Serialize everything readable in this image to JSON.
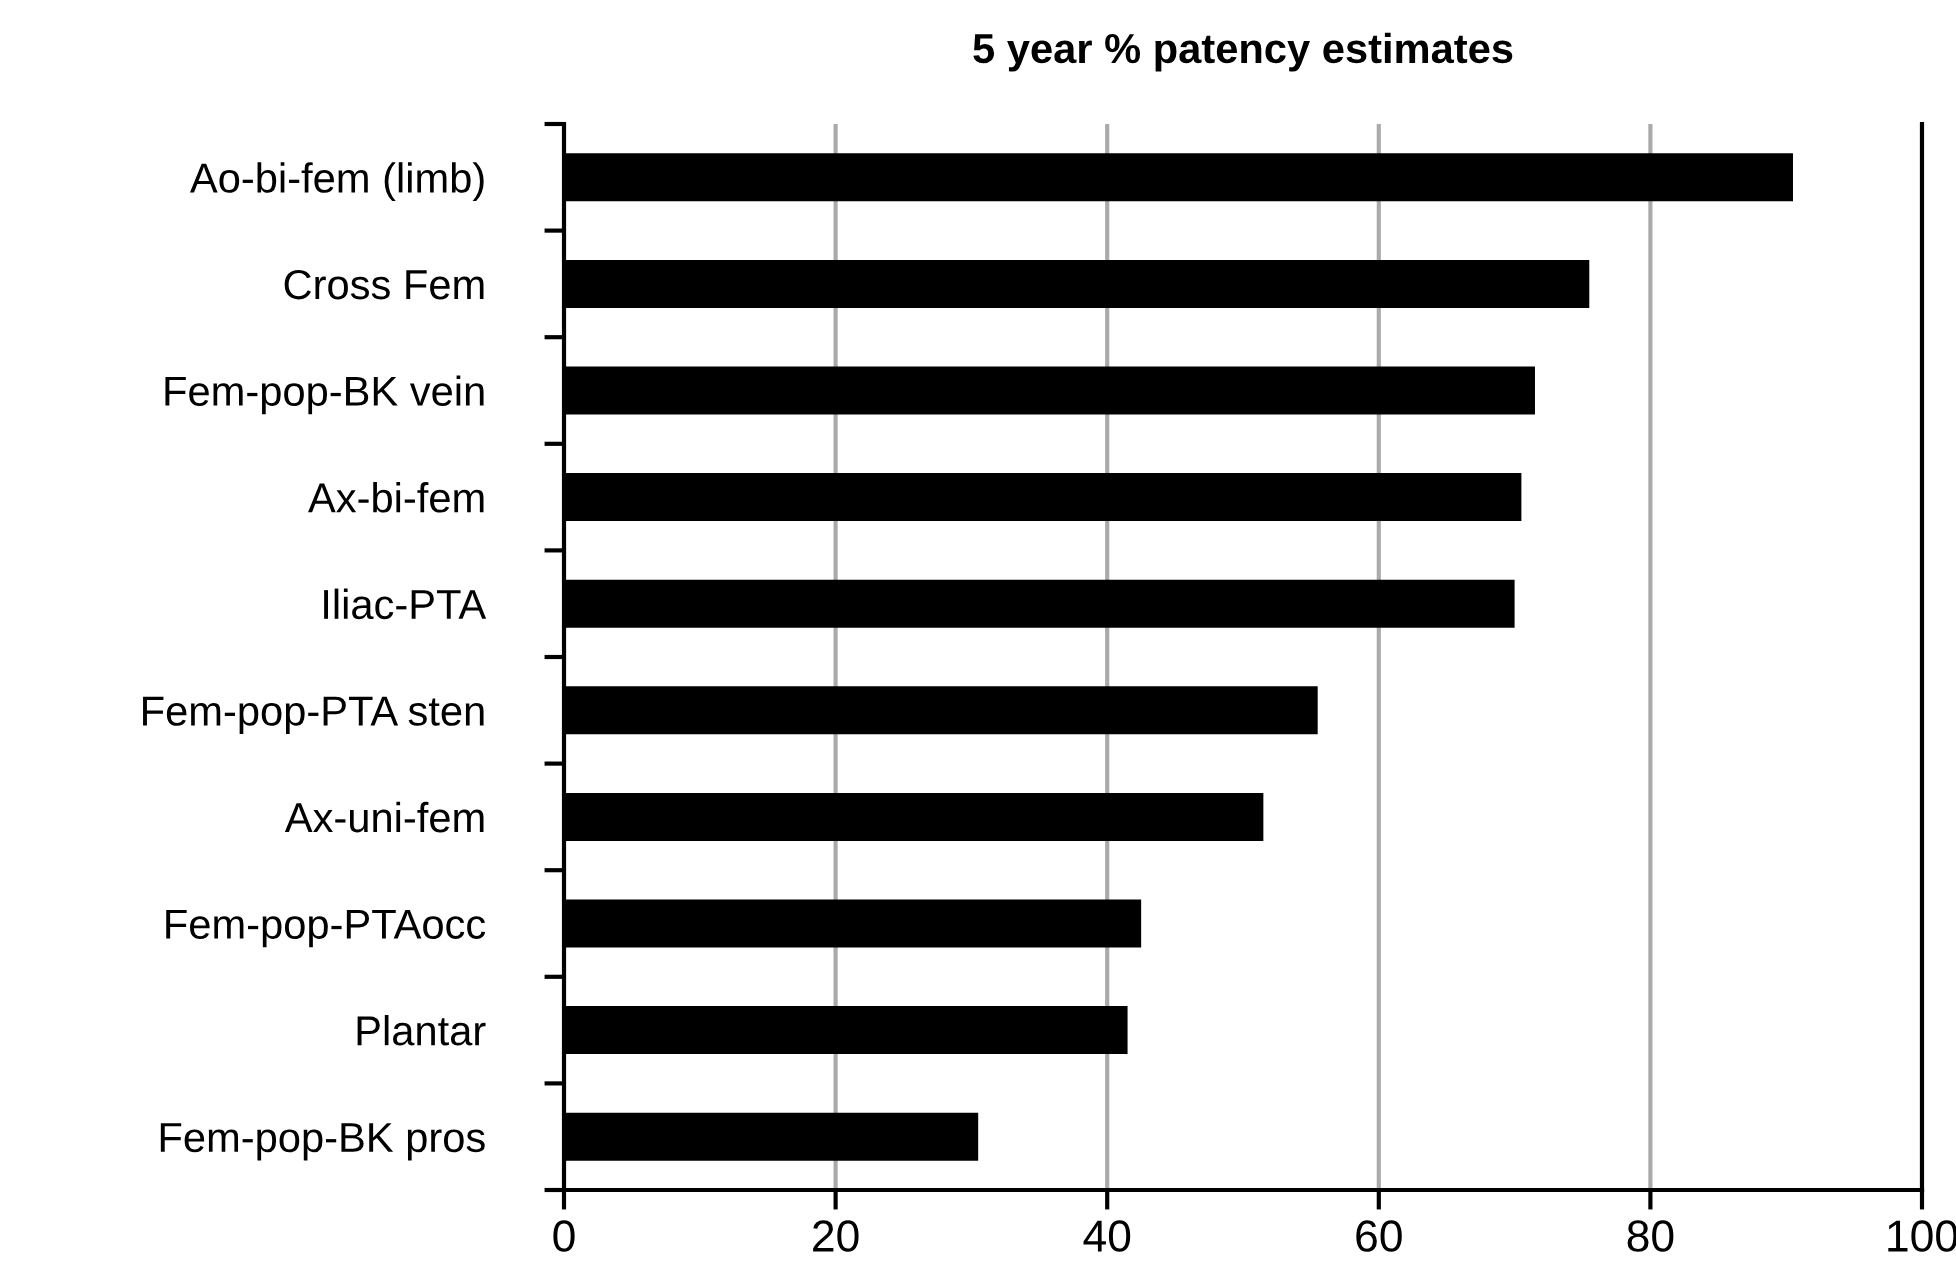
{
  "chart_data": {
    "type": "bar",
    "orientation": "horizontal",
    "title": "5 year % patency estimates",
    "categories": [
      "Ao-bi-fem (limb)",
      "Cross Fem",
      "Fem-pop-BK vein",
      "Ax-bi-fem",
      "Iliac-PTA",
      "Fem-pop-PTA sten",
      "Ax-uni-fem",
      "Fem-pop-PTAocc",
      "Plantar",
      "Fem-pop-BK pros"
    ],
    "values": [
      90.5,
      75.5,
      71.5,
      70.5,
      70,
      55.5,
      51.5,
      42.5,
      41.5,
      30.5
    ],
    "color": "#000000",
    "xlim": [
      0,
      100
    ],
    "xticks": [
      0,
      20,
      40,
      60,
      80,
      100
    ],
    "grid": "x"
  }
}
